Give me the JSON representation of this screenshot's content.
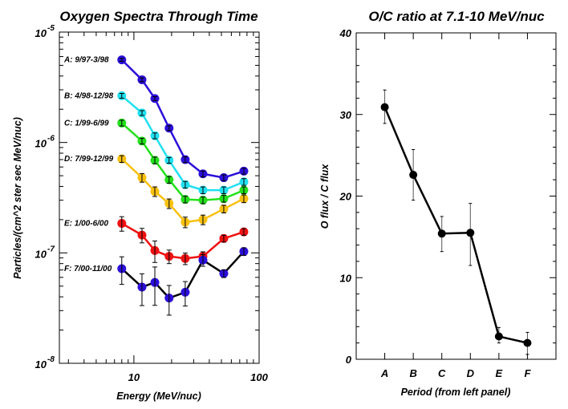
{
  "chart_data": [
    {
      "type": "line",
      "title": "Oxygen Spectra Through Time",
      "xlabel": "Energy (MeV/nuc)",
      "ylabel": "Particles/(cm^2 ster sec MeV/nuc)",
      "xscale": "log",
      "yscale": "log",
      "xlim": [
        2.54,
        100
      ],
      "ylim": [
        1e-08,
        1e-05
      ],
      "xticks": [
        {
          "value": 10,
          "label": "10"
        },
        {
          "value": 100,
          "label": "100"
        }
      ],
      "yticks": [
        {
          "value": 1e-05,
          "base": "10",
          "exp": "-5"
        },
        {
          "value": 1e-06,
          "base": "10",
          "exp": "-6"
        },
        {
          "value": 1e-07,
          "base": "10",
          "exp": "-7"
        },
        {
          "value": 1e-08,
          "base": "10",
          "exp": "-8"
        }
      ],
      "x": [
        8.0,
        11.6,
        14.7,
        19.1,
        25.7,
        35.6,
        52.2,
        75.5
      ],
      "series": [
        {
          "name": "A: 9/97-3/98",
          "color": "#2b0fd9",
          "line_color": "#2b0fd9",
          "values": [
            5.6e-06,
            3.7e-06,
            2.5e-06,
            1.35e-06,
            7e-07,
            5.2e-07,
            4.8e-07,
            5.5e-07
          ],
          "err_frac": [
            0.03,
            0.04,
            0.04,
            0.05,
            0.06,
            0.06,
            0.06,
            0.06
          ]
        },
        {
          "name": "B: 4/98-12/98",
          "color": "#1fe0f0",
          "line_color": "#1fe0f0",
          "values": [
            2.65e-06,
            1.85e-06,
            1.15e-06,
            6.9e-07,
            4.15e-07,
            3.7e-07,
            3.7e-07,
            4.4e-07
          ],
          "err_frac": [
            0.05,
            0.05,
            0.06,
            0.06,
            0.07,
            0.07,
            0.07,
            0.07
          ]
        },
        {
          "name": "C: 1/99-6/99",
          "color": "#22e01a",
          "line_color": "#22e01a",
          "values": [
            1.5e-06,
            1.03e-06,
            6.9e-07,
            4.6e-07,
            3.05e-07,
            3e-07,
            3.1e-07,
            3.7e-07
          ],
          "err_frac": [
            0.06,
            0.06,
            0.07,
            0.07,
            0.07,
            0.07,
            0.07,
            0.07
          ]
        },
        {
          "name": "D: 7/99-12/99",
          "color": "#f8c010",
          "line_color": "#f8c010",
          "values": [
            7.1e-07,
            4.8e-07,
            3.6e-07,
            2.8e-07,
            1.9e-07,
            2e-07,
            2.5e-07,
            3.1e-07
          ],
          "err_frac": [
            0.07,
            0.09,
            0.1,
            0.1,
            0.11,
            0.1,
            0.08,
            0.08
          ]
        },
        {
          "name": "E: 1/00-6/00",
          "color": "#ee1111",
          "line_color": "#ee1111",
          "values": [
            1.85e-07,
            1.45e-07,
            1.05e-07,
            9.3e-08,
            8.9e-08,
            9.3e-08,
            1.35e-07,
            1.55e-07
          ],
          "err_frac": [
            0.15,
            0.15,
            0.22,
            0.14,
            0.12,
            0.1,
            0.07,
            0.07
          ]
        },
        {
          "name": "F: 7/00-11/00",
          "color": "#2b0fd9",
          "line_color": "#000000",
          "values": [
            7.2e-08,
            4.9e-08,
            5.4e-08,
            3.9e-08,
            4.4e-08,
            8.6e-08,
            6.5e-08,
            1.03e-07
          ],
          "err_frac": [
            0.28,
            0.32,
            0.38,
            0.3,
            0.25,
            0.12,
            0.08,
            0.08
          ]
        }
      ],
      "grid": false,
      "legend_placement": "left, inline labels"
    },
    {
      "type": "line",
      "title": "O/C ratio at 7.1-10 MeV/nuc",
      "xlabel": "Period (from left panel)",
      "ylabel": "O flux / C flux",
      "categories": [
        "A",
        "B",
        "C",
        "D",
        "E",
        "F"
      ],
      "xlim": [
        0,
        7
      ],
      "ylim": [
        0,
        40
      ],
      "yticks": [
        0,
        10,
        20,
        30,
        40
      ],
      "values": [
        30.9,
        22.6,
        15.4,
        15.5,
        2.8,
        2.0
      ],
      "err_low": [
        28.9,
        19.5,
        13.2,
        11.5,
        2.0,
        0.6
      ],
      "err_high": [
        33.0,
        25.7,
        17.5,
        19.1,
        3.9,
        3.3
      ],
      "color": "#000000",
      "grid": false
    }
  ]
}
